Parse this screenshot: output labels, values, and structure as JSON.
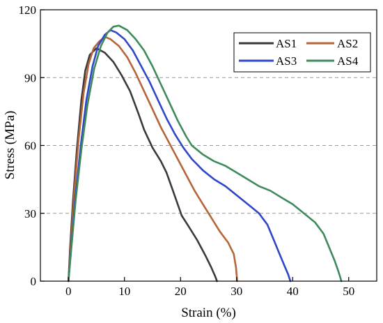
{
  "chart_data": {
    "type": "line",
    "title": "",
    "xlabel": "Strain (%)",
    "ylabel": "Stress (MPa)",
    "xlim": [
      -5,
      55
    ],
    "ylim": [
      0,
      120
    ],
    "xticks": [
      0,
      10,
      20,
      30,
      40,
      50
    ],
    "yticks": [
      0,
      30,
      60,
      90,
      120
    ],
    "x_tick_labels": [
      "0",
      "10",
      "20",
      "30",
      "40",
      "50"
    ],
    "y_tick_labels": [
      "0",
      "30",
      "60",
      "90",
      "120"
    ],
    "grid": "horizontal dashed at 30, 60, 90",
    "legend_position": "top-right",
    "series": [
      {
        "name": "AS1",
        "color": "#3a3a3a",
        "points": [
          [
            0,
            0
          ],
          [
            0.3,
            15
          ],
          [
            0.8,
            35
          ],
          [
            1.5,
            58
          ],
          [
            2.3,
            80
          ],
          [
            3.0,
            93
          ],
          [
            3.8,
            100
          ],
          [
            5.0,
            103
          ],
          [
            6.5,
            101
          ],
          [
            8.0,
            97
          ],
          [
            9.5,
            91
          ],
          [
            11.0,
            84
          ],
          [
            12.5,
            74
          ],
          [
            13.5,
            67
          ],
          [
            15.0,
            59
          ],
          [
            16.5,
            53
          ],
          [
            17.5,
            48
          ],
          [
            18.5,
            41
          ],
          [
            19.5,
            34
          ],
          [
            20.2,
            29
          ],
          [
            21.5,
            24
          ],
          [
            23.0,
            18
          ],
          [
            24.5,
            11
          ],
          [
            25.5,
            6
          ],
          [
            26.2,
            2
          ],
          [
            26.5,
            0
          ]
        ]
      },
      {
        "name": "AS2",
        "color": "#b5653a",
        "points": [
          [
            0,
            0
          ],
          [
            0.4,
            15
          ],
          [
            1.0,
            38
          ],
          [
            1.8,
            62
          ],
          [
            2.7,
            83
          ],
          [
            3.6,
            96
          ],
          [
            4.5,
            103
          ],
          [
            5.5,
            106
          ],
          [
            6.5,
            108
          ],
          [
            7.5,
            107
          ],
          [
            9.0,
            104
          ],
          [
            10.5,
            99
          ],
          [
            12.0,
            92
          ],
          [
            13.5,
            84
          ],
          [
            15.0,
            76
          ],
          [
            16.5,
            68
          ],
          [
            18.0,
            61
          ],
          [
            19.5,
            54
          ],
          [
            21.0,
            47
          ],
          [
            22.5,
            40
          ],
          [
            24.0,
            34
          ],
          [
            25.5,
            28
          ],
          [
            27.0,
            22
          ],
          [
            28.5,
            17
          ],
          [
            29.5,
            12
          ],
          [
            29.9,
            6
          ],
          [
            30.1,
            0
          ]
        ]
      },
      {
        "name": "AS3",
        "color": "#2f46c8",
        "points": [
          [
            0,
            0
          ],
          [
            0.4,
            12
          ],
          [
            1.2,
            36
          ],
          [
            2.2,
            60
          ],
          [
            3.2,
            80
          ],
          [
            4.3,
            95
          ],
          [
            5.3,
            104
          ],
          [
            6.5,
            109
          ],
          [
            7.5,
            111
          ],
          [
            8.5,
            110
          ],
          [
            10.0,
            107
          ],
          [
            11.5,
            102
          ],
          [
            13.0,
            95
          ],
          [
            14.5,
            88
          ],
          [
            16.0,
            80
          ],
          [
            17.5,
            72
          ],
          [
            19.0,
            65
          ],
          [
            20.5,
            59
          ],
          [
            22.0,
            54
          ],
          [
            24.0,
            49
          ],
          [
            26.0,
            45
          ],
          [
            28.0,
            42
          ],
          [
            30.0,
            38
          ],
          [
            32.0,
            34
          ],
          [
            34.0,
            30
          ],
          [
            35.5,
            25
          ],
          [
            36.5,
            19
          ],
          [
            37.5,
            13
          ],
          [
            38.5,
            7
          ],
          [
            39.2,
            3
          ],
          [
            39.6,
            0
          ]
        ]
      },
      {
        "name": "AS4",
        "color": "#3f8a5c",
        "points": [
          [
            0,
            0
          ],
          [
            0.5,
            14
          ],
          [
            1.3,
            36
          ],
          [
            2.3,
            58
          ],
          [
            3.4,
            78
          ],
          [
            4.6,
            94
          ],
          [
            5.8,
            104
          ],
          [
            7.0,
            110
          ],
          [
            8.0,
            112.5
          ],
          [
            9.0,
            113
          ],
          [
            10.5,
            111
          ],
          [
            12.0,
            107
          ],
          [
            13.5,
            102
          ],
          [
            15.0,
            95
          ],
          [
            16.5,
            87
          ],
          [
            18.0,
            79
          ],
          [
            19.5,
            71
          ],
          [
            21.0,
            64
          ],
          [
            22.0,
            60
          ],
          [
            24.0,
            56
          ],
          [
            26.0,
            53
          ],
          [
            28.0,
            51
          ],
          [
            30.0,
            48
          ],
          [
            32.0,
            45
          ],
          [
            34.0,
            42
          ],
          [
            36.0,
            40
          ],
          [
            38.0,
            37
          ],
          [
            40.0,
            34
          ],
          [
            42.0,
            30
          ],
          [
            44.0,
            26
          ],
          [
            45.5,
            21
          ],
          [
            46.5,
            15
          ],
          [
            47.5,
            9
          ],
          [
            48.2,
            4
          ],
          [
            48.7,
            0
          ]
        ]
      }
    ]
  }
}
